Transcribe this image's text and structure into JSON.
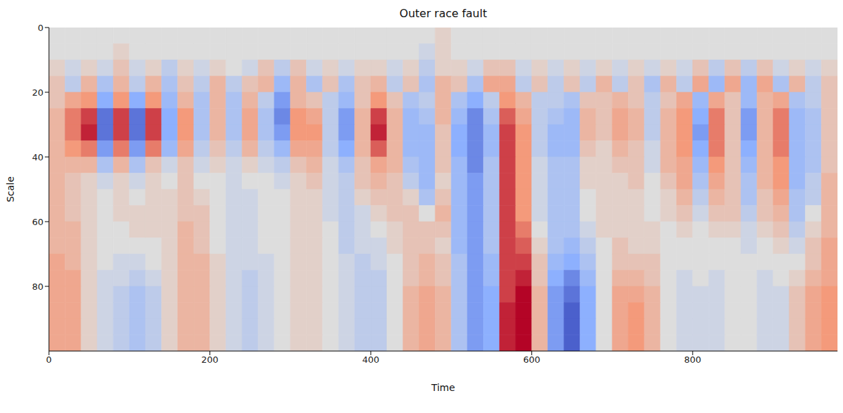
{
  "chart_data": {
    "type": "heatmap",
    "title": "Outer race fault",
    "x_label": "Time",
    "y_label": "Scale",
    "xlim": [
      0,
      980
    ],
    "ylim": [
      100,
      0
    ],
    "xticks": [
      0,
      200,
      400,
      600,
      800
    ],
    "yticks": [
      0,
      20,
      40,
      60,
      80
    ],
    "x_bins": [
      0,
      20,
      40,
      60,
      80,
      100,
      120,
      140,
      160,
      180,
      200,
      220,
      240,
      260,
      280,
      300,
      320,
      340,
      360,
      380,
      400,
      420,
      440,
      460,
      480,
      500,
      520,
      540,
      560,
      580,
      600,
      620,
      640,
      660,
      680,
      700,
      720,
      740,
      760,
      780,
      800,
      820,
      840,
      860,
      880,
      900,
      920,
      940,
      960,
      980
    ],
    "y_bins": [
      0,
      5,
      10,
      15,
      20,
      25,
      30,
      35,
      40,
      45,
      50,
      55,
      60,
      65,
      70,
      75,
      80,
      85,
      90,
      95,
      100
    ],
    "cells": [
      [
        0,
        0,
        0,
        0,
        0,
        0,
        0,
        0,
        0,
        0,
        0,
        0,
        0,
        0,
        0,
        0,
        0,
        0,
        0,
        0,
        0,
        0,
        0,
        0,
        0.1,
        0,
        0,
        0,
        0,
        0,
        0,
        0,
        0,
        0,
        0,
        0,
        0,
        0,
        0,
        0,
        0,
        0,
        0,
        0,
        0,
        0,
        0,
        0,
        0
      ],
      [
        0,
        0,
        0,
        0,
        0.1,
        0,
        0,
        0,
        0,
        0,
        0,
        0,
        0,
        0,
        0,
        0,
        0,
        0,
        0,
        0,
        0,
        0,
        0,
        -0.1,
        0.1,
        0,
        0,
        0,
        0,
        0,
        0,
        0,
        0,
        0,
        0,
        0,
        0,
        0,
        0,
        0,
        0,
        0,
        0,
        0,
        0,
        0,
        0,
        0,
        0
      ],
      [
        0.1,
        -0.1,
        0.1,
        -0.1,
        0.2,
        -0.1,
        0.1,
        -0.2,
        0.1,
        -0.1,
        0.1,
        0,
        -0.1,
        0.2,
        -0.2,
        0.2,
        -0.1,
        0.1,
        -0.1,
        0.1,
        0.1,
        -0.1,
        0.1,
        -0.2,
        0.1,
        0.1,
        -0.1,
        0.2,
        0.2,
        -0.1,
        0.1,
        -0.1,
        0.1,
        -0.1,
        0.1,
        -0.1,
        0.1,
        -0.1,
        0.1,
        -0.1,
        0.2,
        -0.2,
        0.2,
        -0.2,
        0.2,
        -0.1,
        0.1,
        -0.1,
        0.1
      ],
      [
        0.2,
        -0.2,
        0.3,
        -0.3,
        0.3,
        -0.2,
        0.3,
        -0.3,
        0.2,
        -0.2,
        0.3,
        -0.2,
        0.2,
        0.3,
        -0.4,
        0.3,
        -0.3,
        0.2,
        -0.3,
        0.2,
        0.3,
        -0.2,
        0.2,
        -0.3,
        0.3,
        0.2,
        -0.3,
        0.4,
        0.4,
        -0.2,
        0.2,
        -0.2,
        0.2,
        -0.2,
        0.3,
        -0.2,
        0.2,
        -0.3,
        0.3,
        -0.2,
        0.4,
        -0.4,
        0.4,
        -0.4,
        0.4,
        -0.3,
        0.3,
        -0.2,
        0.2
      ],
      [
        0.2,
        0.4,
        0.5,
        -0.5,
        0.5,
        -0.5,
        0.5,
        -0.4,
        0.3,
        -0.3,
        0.3,
        -0.3,
        0.3,
        -0.2,
        -0.6,
        0.3,
        0.2,
        -0.2,
        -0.4,
        0.2,
        0.5,
        0.2,
        -0.3,
        -0.2,
        0.3,
        -0.3,
        -0.5,
        -0.2,
        0.5,
        0.3,
        -0.2,
        -0.2,
        -0.3,
        0.2,
        0.2,
        0.3,
        0.2,
        -0.2,
        0.2,
        0.4,
        -0.4,
        0.4,
        0.2,
        -0.4,
        0.3,
        0.4,
        -0.3,
        -0.2,
        0.2
      ],
      [
        0.3,
        0.6,
        0.8,
        -0.8,
        0.8,
        -0.8,
        0.8,
        -0.5,
        0.5,
        -0.3,
        0.3,
        -0.3,
        0.4,
        -0.3,
        -0.7,
        0.5,
        0.4,
        -0.2,
        -0.6,
        0.3,
        0.8,
        0.3,
        -0.4,
        -0.3,
        0.3,
        -0.4,
        -0.7,
        -0.3,
        0.7,
        0.4,
        -0.2,
        -0.3,
        -0.4,
        0.3,
        0.2,
        0.4,
        0.3,
        -0.2,
        0.3,
        0.5,
        -0.5,
        0.6,
        0.2,
        -0.6,
        0.3,
        0.6,
        -0.4,
        -0.3,
        0.2
      ],
      [
        0.3,
        0.6,
        0.9,
        -0.8,
        0.8,
        -0.8,
        0.8,
        -0.5,
        0.5,
        -0.3,
        0.3,
        -0.3,
        0.4,
        -0.3,
        -0.6,
        0.5,
        0.5,
        -0.2,
        -0.6,
        0.3,
        0.9,
        0.3,
        -0.4,
        -0.4,
        0.2,
        -0.5,
        -0.7,
        -0.4,
        0.8,
        0.5,
        -0.2,
        -0.4,
        -0.4,
        0.3,
        0.2,
        0.4,
        0.3,
        -0.2,
        0.3,
        0.5,
        -0.6,
        0.6,
        0.2,
        -0.6,
        0.3,
        0.6,
        -0.4,
        -0.3,
        0.2
      ],
      [
        0.3,
        0.5,
        0.6,
        -0.6,
        0.6,
        -0.6,
        0.6,
        -0.4,
        0.4,
        -0.2,
        0.2,
        -0.2,
        0.3,
        -0.2,
        -0.4,
        0.4,
        0.4,
        -0.2,
        -0.5,
        0.3,
        0.7,
        0.3,
        -0.4,
        -0.4,
        0.2,
        -0.5,
        -0.7,
        -0.4,
        0.8,
        0.5,
        -0.2,
        -0.4,
        -0.4,
        0.2,
        0.1,
        0.3,
        0.2,
        -0.1,
        0.3,
        0.5,
        -0.5,
        0.6,
        0.2,
        -0.5,
        0.3,
        0.6,
        -0.4,
        -0.3,
        0.2
      ],
      [
        0.3,
        0.3,
        0.3,
        -0.3,
        0.3,
        -0.3,
        0.2,
        -0.1,
        0.2,
        -0.1,
        0.1,
        -0.1,
        0.1,
        -0.1,
        -0.2,
        0.2,
        0.3,
        -0.1,
        -0.3,
        0.2,
        0.4,
        0.3,
        -0.3,
        -0.4,
        0.2,
        -0.4,
        -0.7,
        -0.3,
        0.8,
        0.5,
        -0.1,
        -0.3,
        -0.3,
        0.1,
        0.1,
        0.2,
        0.2,
        -0.1,
        0.3,
        0.4,
        -0.4,
        0.5,
        0.2,
        -0.4,
        0.3,
        0.5,
        -0.4,
        -0.3,
        0.2
      ],
      [
        0.3,
        0.2,
        0.1,
        -0.1,
        0.1,
        -0.1,
        0.1,
        0,
        0.2,
        0,
        0,
        -0.1,
        0,
        0,
        -0.1,
        0.1,
        0.2,
        -0.1,
        -0.2,
        0.2,
        0.3,
        0.2,
        -0.2,
        -0.4,
        0.1,
        -0.4,
        -0.6,
        -0.3,
        0.8,
        0.5,
        -0.1,
        -0.3,
        -0.3,
        0.1,
        0.1,
        0.1,
        0.2,
        0,
        0.2,
        0.4,
        -0.3,
        0.4,
        0.2,
        -0.3,
        0.3,
        0.5,
        -0.4,
        -0.2,
        0.3
      ],
      [
        0.3,
        0.2,
        0.1,
        0,
        0.1,
        0,
        0.1,
        0.1,
        0.2,
        0.1,
        0,
        -0.1,
        -0.1,
        0,
        0,
        0.1,
        0.1,
        -0.1,
        -0.2,
        0.1,
        0.2,
        0.2,
        0.1,
        -0.3,
        0.2,
        -0.4,
        -0.6,
        -0.3,
        0.8,
        0.5,
        -0.1,
        -0.3,
        -0.3,
        0,
        0.1,
        0.1,
        0.1,
        0,
        0.1,
        0.3,
        -0.2,
        0.3,
        0.2,
        -0.3,
        0.2,
        0.4,
        -0.3,
        -0.2,
        0.3
      ],
      [
        0.3,
        0.2,
        0.1,
        0,
        0.1,
        0.1,
        0.1,
        0.1,
        0.2,
        0.2,
        0,
        -0.1,
        -0.1,
        0,
        0,
        0.1,
        0.1,
        -0.1,
        -0.2,
        -0.1,
        0.1,
        0.2,
        0.2,
        0,
        0.3,
        -0.4,
        -0.6,
        -0.3,
        0.8,
        0.5,
        -0.1,
        -0.3,
        -0.3,
        0,
        0.1,
        0.1,
        0.1,
        0,
        0.1,
        0.2,
        -0.1,
        0.2,
        0.2,
        -0.2,
        0.2,
        0.3,
        -0.3,
        0,
        0.3
      ],
      [
        0.3,
        0.3,
        0.1,
        0,
        0,
        0.1,
        0.1,
        0.1,
        0.3,
        0.2,
        0,
        -0.1,
        -0.1,
        0,
        0,
        0.1,
        0.1,
        0,
        -0.2,
        -0.1,
        0,
        0.1,
        0.2,
        0.2,
        0.2,
        -0.4,
        -0.6,
        -0.3,
        0.8,
        0.6,
        0,
        -0.3,
        -0.3,
        -0.1,
        0.1,
        0.1,
        0.1,
        0.1,
        0,
        0.1,
        0,
        0.1,
        0.1,
        -0.1,
        0.1,
        0.2,
        -0.2,
        0.1,
        0.3
      ],
      [
        0.3,
        0.3,
        0.1,
        0,
        0,
        0,
        0,
        0.1,
        0.3,
        0.2,
        0,
        -0.1,
        -0.1,
        0,
        0,
        0.1,
        0.1,
        0,
        -0.2,
        -0.1,
        -0.1,
        0.1,
        0.2,
        0.2,
        0.1,
        -0.4,
        -0.6,
        -0.3,
        0.8,
        0.7,
        0.1,
        -0.3,
        -0.4,
        -0.2,
        0,
        0.2,
        0.1,
        0.1,
        0,
        0,
        0,
        0,
        0,
        -0.1,
        0,
        0.1,
        -0.1,
        0.2,
        0.4
      ],
      [
        0.4,
        0.3,
        0.1,
        0,
        -0.1,
        -0.1,
        0,
        0.1,
        0.3,
        0.3,
        0.1,
        -0.1,
        -0.1,
        -0.1,
        0,
        0.1,
        0.1,
        0,
        -0.1,
        -0.2,
        -0.1,
        0,
        0.2,
        0.3,
        0.2,
        -0.3,
        -0.6,
        -0.4,
        0.8,
        0.8,
        0.2,
        -0.4,
        -0.5,
        -0.3,
        0,
        0.2,
        0.2,
        0.2,
        0,
        0,
        0,
        0,
        0,
        0,
        0,
        0,
        0,
        0.2,
        0.4
      ],
      [
        0.4,
        0.4,
        0.1,
        -0.1,
        -0.1,
        -0.2,
        -0.1,
        0.1,
        0.3,
        0.3,
        0.1,
        -0.1,
        -0.2,
        -0.1,
        0,
        0.1,
        0.1,
        0,
        -0.1,
        -0.2,
        -0.2,
        0,
        0.2,
        0.3,
        0.2,
        -0.3,
        -0.6,
        -0.4,
        0.8,
        0.9,
        0.2,
        -0.5,
        -0.7,
        -0.4,
        0,
        0.3,
        0.3,
        0.2,
        0,
        -0.1,
        0,
        -0.1,
        0,
        0,
        -0.1,
        0,
        0.1,
        0.3,
        0.4
      ],
      [
        0.4,
        0.4,
        0.1,
        -0.1,
        -0.2,
        -0.3,
        -0.2,
        0.1,
        0.3,
        0.3,
        0.1,
        -0.1,
        -0.2,
        -0.1,
        0,
        0.1,
        0.1,
        0,
        -0.1,
        -0.2,
        -0.2,
        0,
        0.3,
        0.4,
        0.3,
        -0.3,
        -0.6,
        -0.5,
        0.8,
        1.0,
        0.3,
        -0.6,
        -0.8,
        -0.5,
        0,
        0.4,
        0.4,
        0.3,
        0,
        -0.1,
        -0.1,
        -0.1,
        0,
        0,
        -0.1,
        -0.1,
        0.2,
        0.4,
        0.5
      ],
      [
        0.4,
        0.4,
        0.1,
        -0.1,
        -0.2,
        -0.3,
        -0.2,
        0.1,
        0.3,
        0.3,
        0.1,
        -0.1,
        -0.2,
        -0.1,
        0,
        0.1,
        0.1,
        0,
        -0.1,
        -0.2,
        -0.2,
        0,
        0.3,
        0.4,
        0.3,
        -0.3,
        -0.6,
        -0.5,
        0.9,
        1.0,
        0.3,
        -0.6,
        -0.9,
        -0.5,
        0,
        0.4,
        0.5,
        0.3,
        0,
        -0.1,
        -0.1,
        -0.1,
        0,
        0,
        -0.1,
        -0.1,
        0.2,
        0.4,
        0.5
      ],
      [
        0.4,
        0.4,
        0.1,
        -0.1,
        -0.2,
        -0.3,
        -0.2,
        0.1,
        0.3,
        0.3,
        0.1,
        -0.1,
        -0.2,
        -0.1,
        0,
        0.1,
        0.1,
        0,
        -0.1,
        -0.2,
        -0.2,
        0,
        0.3,
        0.4,
        0.3,
        -0.3,
        -0.6,
        -0.5,
        0.9,
        1.0,
        0.3,
        -0.6,
        -0.9,
        -0.5,
        0,
        0.4,
        0.5,
        0.3,
        0,
        -0.1,
        -0.1,
        -0.1,
        0,
        0,
        -0.1,
        -0.1,
        0.2,
        0.4,
        0.5
      ],
      [
        0.4,
        0.4,
        0.1,
        -0.1,
        -0.2,
        -0.3,
        -0.2,
        0.1,
        0.3,
        0.3,
        0.1,
        -0.1,
        -0.2,
        -0.1,
        0,
        0.1,
        0.1,
        0,
        -0.1,
        -0.2,
        -0.2,
        0,
        0.3,
        0.4,
        0.3,
        -0.3,
        -0.6,
        -0.5,
        0.9,
        1.0,
        0.3,
        -0.6,
        -0.9,
        -0.5,
        0,
        0.4,
        0.5,
        0.3,
        0,
        -0.1,
        -0.1,
        -0.1,
        0,
        0,
        -0.1,
        -0.1,
        0.2,
        0.4,
        0.5
      ]
    ]
  }
}
